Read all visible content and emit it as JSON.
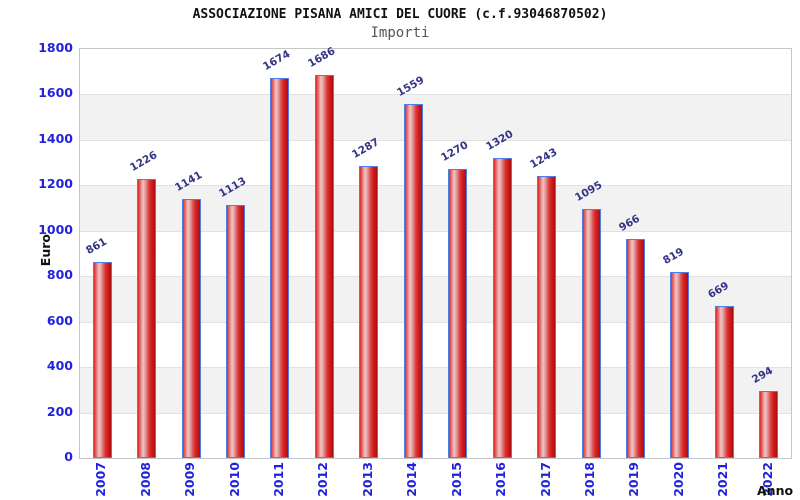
{
  "header": {
    "title": "ASSOCIAZIONE PISANA AMICI DEL CUORE (c.f.93046870502)",
    "subtitle": "Importi"
  },
  "chart_data": {
    "type": "bar",
    "title": "ASSOCIAZIONE PISANA AMICI DEL CUORE (c.f.93046870502)",
    "subtitle": "Importi",
    "xlabel": "Anno",
    "ylabel": "Euro",
    "categories": [
      "2007",
      "2008",
      "2009",
      "2010",
      "2011",
      "2012",
      "2013",
      "2014",
      "2015",
      "2016",
      "2017",
      "2018",
      "2019",
      "2020",
      "2021",
      "2022"
    ],
    "values": [
      861,
      1226,
      1141,
      1113,
      1674,
      1686,
      1287,
      1559,
      1270,
      1320,
      1243,
      1095,
      966,
      819,
      669,
      294
    ],
    "ylim": [
      0,
      1800
    ],
    "ytick_step": 200,
    "yticks": [
      0,
      200,
      400,
      600,
      800,
      1000,
      1200,
      1400,
      1600,
      1800
    ],
    "grid": "horizontal-bands-alternating",
    "legend": "none",
    "colors": {
      "tick_label": "#2222dd",
      "value_label": "#333388",
      "axis_title": "#111111",
      "title": "#111111",
      "subtitle": "#555555",
      "bar_border": "#4d7fe8",
      "band_white": "#ffffff",
      "band_gray": "#f2f2f2",
      "gridline": "#e2e2e2",
      "plot_border": "#c6c6c6"
    }
  }
}
